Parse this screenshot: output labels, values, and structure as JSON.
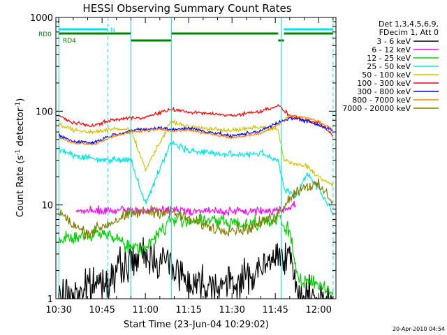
{
  "chart_data": {
    "type": "line",
    "title": "HESSI Observing Summary Count Rates",
    "xlabel": "Start Time (23-Jun-04 10:29:02)",
    "ylabel": "Count Rate (s",
    "ylabel_sup1": "-1",
    "ylabel_mid": " detector",
    "ylabel_sup2": "-1",
    "ylabel_end": ")",
    "yscale": "log",
    "xlim": [
      "10:29",
      "12:06"
    ],
    "ylim": [
      1,
      1000
    ],
    "x_ticks": [
      "10:30",
      "10:45",
      "11:00",
      "11:15",
      "11:30",
      "11:45",
      "12:00"
    ],
    "y_ticks": [
      "1",
      "10",
      "100",
      "1000"
    ],
    "legend_position": "right",
    "legend_header": [
      "Det 1,3,4,5,6,9,",
      "FDecim 1, Att 0"
    ],
    "timestamp": "20-Apr-2010 04:54",
    "flags": [
      {
        "label": "N",
        "color": "#00e5e5",
        "segments": [
          [
            "10:30",
            "10:47"
          ],
          [
            "11:48",
            "12:05"
          ]
        ]
      },
      {
        "label": "RD0",
        "color": "#008000",
        "segments": [
          [
            "10:30",
            "10:55"
          ],
          [
            "11:09",
            "11:46"
          ],
          [
            "11:48",
            "12:05"
          ]
        ]
      },
      {
        "label": "RD4",
        "color": "#008000",
        "segments": [
          [
            "10:55",
            "11:09"
          ],
          [
            "11:46",
            "11:48"
          ]
        ]
      }
    ],
    "vlines_solid": [
      "10:30",
      "10:55",
      "11:09",
      "11:47"
    ],
    "vlines_dashed": [
      "10:47",
      "12:05"
    ],
    "series": [
      {
        "name": "3 - 6 keV",
        "color": "#000000",
        "noise": 0.22,
        "x": [
          "10:30",
          "10:40",
          "10:48",
          "10:55",
          "11:00",
          "11:09",
          "11:15",
          "11:30",
          "11:42",
          "11:46",
          "11:49",
          "11:53",
          "12:00",
          "12:05"
        ],
        "y": [
          1.0,
          1.3,
          1.7,
          2.5,
          2.9,
          2.4,
          1.5,
          1.4,
          2.2,
          3.0,
          3.3,
          1.0,
          1.0,
          1.0
        ]
      },
      {
        "name": "6 - 12 keV",
        "color": "#ff00ff",
        "noise": 0.05,
        "x": [
          "10:36",
          "10:45",
          "10:55",
          "11:09",
          "11:20",
          "11:35",
          "11:46",
          "11:50",
          "11:52"
        ],
        "y": [
          8.5,
          8.6,
          8.7,
          8.8,
          8.6,
          8.5,
          8.8,
          9.5,
          10.0
        ]
      },
      {
        "name": "12 - 25 keV",
        "color": "#00d000",
        "noise": 0.09,
        "x": [
          "10:30",
          "10:40",
          "10:48",
          "10:55",
          "11:00",
          "11:09",
          "11:20",
          "11:35",
          "11:46",
          "11:50",
          "11:53",
          "12:00",
          "12:05"
        ],
        "y": [
          4.4,
          4.6,
          5.0,
          3.5,
          3.5,
          7.0,
          6.8,
          6.3,
          7.0,
          5.0,
          1.6,
          1.4,
          1.2
        ]
      },
      {
        "name": "25 - 50 keV",
        "color": "#00e5e5",
        "noise": 0.04,
        "x": [
          "10:30",
          "10:35",
          "10:45",
          "10:50",
          "10:55",
          "11:00",
          "11:09",
          "11:15",
          "11:30",
          "11:40",
          "11:46",
          "11:48",
          "11:52",
          "11:56",
          "12:00",
          "12:05"
        ],
        "y": [
          40,
          34,
          30,
          31,
          30,
          10.5,
          47,
          38,
          34,
          36,
          30,
          15,
          12,
          22,
          15,
          8
        ]
      },
      {
        "name": "50 - 100 keV",
        "color": "#d4c000",
        "noise": 0.025,
        "x": [
          "10:30",
          "10:35",
          "10:42",
          "10:48",
          "10:55",
          "11:00",
          "11:09",
          "11:15",
          "11:30",
          "11:40",
          "11:46",
          "11:48",
          "11:52",
          "11:56",
          "12:00",
          "12:05"
        ],
        "y": [
          72,
          63,
          60,
          64,
          64,
          24,
          78,
          68,
          62,
          68,
          63,
          30,
          27,
          26,
          20,
          16
        ]
      },
      {
        "name": "100 - 300 keV",
        "color": "#ff0000",
        "noise": 0.02,
        "x": [
          "10:30",
          "10:35",
          "10:42",
          "10:48",
          "10:55",
          "11:00",
          "11:09",
          "11:15",
          "11:30",
          "11:40",
          "11:46",
          "11:50",
          "11:55",
          "12:00",
          "12:05"
        ],
        "y": [
          90,
          75,
          70,
          80,
          85,
          86,
          105,
          98,
          90,
          100,
          115,
          90,
          80,
          75,
          55
        ]
      },
      {
        "name": "300 - 800 keV",
        "color": "#0000ff",
        "noise": 0.02,
        "x": [
          "10:30",
          "10:35",
          "10:42",
          "10:48",
          "10:55",
          "11:05",
          "11:09",
          "11:15",
          "11:30",
          "11:40",
          "11:46",
          "11:50",
          "11:55",
          "12:00",
          "12:05"
        ],
        "y": [
          55,
          48,
          46,
          55,
          62,
          66,
          64,
          66,
          54,
          62,
          75,
          85,
          80,
          72,
          62
        ]
      },
      {
        "name": "800 - 7000 keV",
        "color": "#ff8000",
        "noise": 0.015,
        "x": [
          "10:30",
          "10:35",
          "10:42",
          "10:48",
          "10:55",
          "11:05",
          "11:09",
          "11:15",
          "11:30",
          "11:40",
          "11:46",
          "11:50",
          "11:55",
          "12:00",
          "12:05"
        ],
        "y": [
          52,
          46,
          44,
          53,
          60,
          64,
          62,
          63,
          52,
          58,
          72,
          90,
          86,
          78,
          64
        ]
      },
      {
        "name": "7000 - 20000 keV",
        "color": "#808000",
        "noise": 0.07,
        "x": [
          "10:30",
          "10:35",
          "10:40",
          "10:48",
          "10:55",
          "11:00",
          "11:09",
          "11:15",
          "11:25",
          "11:35",
          "11:45",
          "11:50",
          "11:55",
          "12:00",
          "12:05"
        ],
        "y": [
          8.5,
          6.0,
          5.0,
          6.5,
          8.0,
          8.5,
          8.5,
          7.0,
          5.5,
          5.5,
          7.5,
          12,
          16,
          16,
          11
        ]
      }
    ]
  }
}
